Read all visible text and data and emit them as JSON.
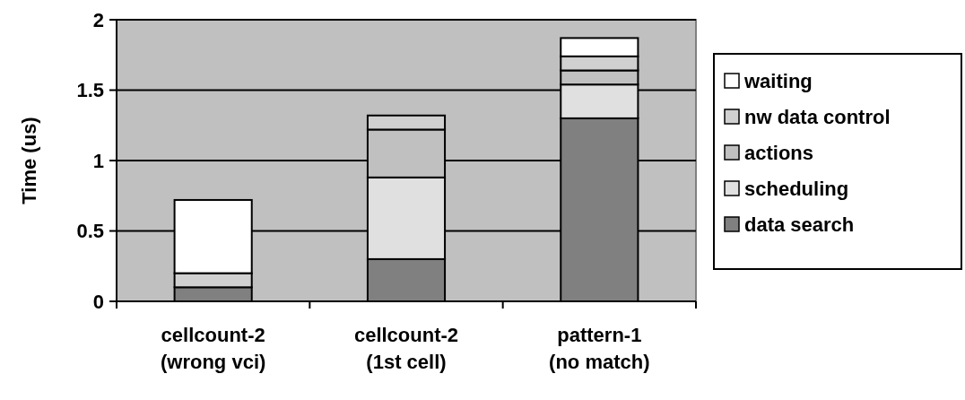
{
  "chart_data": {
    "type": "bar",
    "stacked": true,
    "ylabel": "Time (us)",
    "categories": [
      "cellcount-2\n(wrong vci)",
      "cellcount-2\n(1st cell)",
      "pattern-1\n(no match)"
    ],
    "series": [
      {
        "name": "data search",
        "color": "#808080",
        "values": [
          0.1,
          0.3,
          1.3
        ]
      },
      {
        "name": "scheduling",
        "color": "#e0e0e0",
        "values": [
          0,
          0.58,
          0.24
        ]
      },
      {
        "name": "actions",
        "color": "#c0c0c0",
        "values": [
          0,
          0.34,
          0.1
        ]
      },
      {
        "name": "nw data control",
        "color": "#d0d0d0",
        "values": [
          0.1,
          0.1,
          0.1
        ]
      },
      {
        "name": "waiting",
        "color": "#ffffff",
        "values": [
          0.52,
          0,
          0.13
        ]
      }
    ],
    "ylim": [
      0,
      2
    ],
    "yticks": [
      0,
      0.5,
      1,
      1.5,
      2
    ],
    "grid": "y",
    "legend": "right"
  }
}
